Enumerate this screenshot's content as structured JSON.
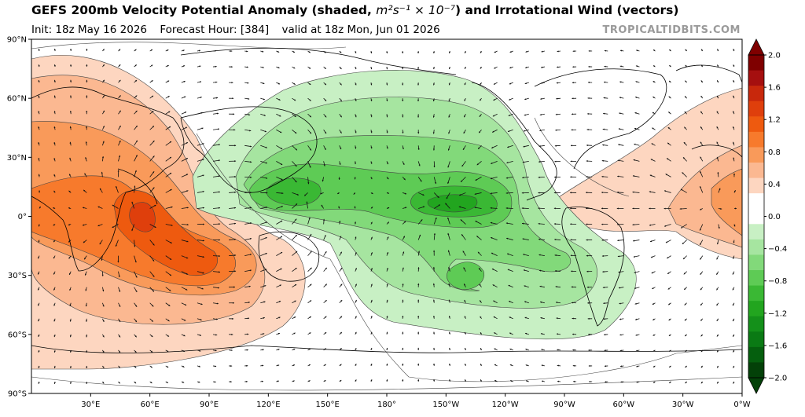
{
  "header": {
    "title_main": "GEFS 200mb Velocity Potential Anomaly (shaded,",
    "title_units": "m²s⁻¹ × 10⁻⁷",
    "title_tail": ") and Irrotational Wind (vectors)",
    "init": "Init: 18z May 16 2026",
    "forecast_hour": "Forecast Hour: [384]",
    "valid": "valid at 18z Mon, Jun 01 2026",
    "credit": "TROPICALTIDBITS.COM"
  },
  "map": {
    "lat_ticks": [
      {
        "lat": 90,
        "label": "90°N"
      },
      {
        "lat": 60,
        "label": "60°N"
      },
      {
        "lat": 30,
        "label": "30°N"
      },
      {
        "lat": 0,
        "label": "0°"
      },
      {
        "lat": -30,
        "label": "30°S"
      },
      {
        "lat": -60,
        "label": "60°S"
      },
      {
        "lat": -90,
        "label": "90°S"
      }
    ],
    "lon_ticks": [
      {
        "lon": 30,
        "label": "30°E"
      },
      {
        "lon": 60,
        "label": "60°E"
      },
      {
        "lon": 90,
        "label": "90°E"
      },
      {
        "lon": 120,
        "label": "120°E"
      },
      {
        "lon": 150,
        "label": "150°E"
      },
      {
        "lon": 180,
        "label": "180°"
      },
      {
        "lon": 210,
        "label": "150°W"
      },
      {
        "lon": 240,
        "label": "120°W"
      },
      {
        "lon": 270,
        "label": "90°W"
      },
      {
        "lon": 300,
        "label": "60°W"
      },
      {
        "lon": 330,
        "label": "30°W"
      },
      {
        "lon": 360,
        "label": "0°W"
      }
    ],
    "anomaly_centers": [
      {
        "lon": 55,
        "lat": 0,
        "value": 1.6,
        "kind": "positive"
      },
      {
        "lon": 340,
        "lat": 5,
        "value": 0.8,
        "kind": "positive"
      },
      {
        "lon": 135,
        "lat": 10,
        "value": -1.2,
        "kind": "negative"
      },
      {
        "lon": 210,
        "lat": 7,
        "value": -1.2,
        "kind": "negative"
      }
    ]
  },
  "colorbar": {
    "ticks": [
      "2.0",
      "1.6",
      "1.2",
      "0.8",
      "0.4",
      "0.0",
      "−0.4",
      "−0.8",
      "−1.2",
      "−1.6",
      "−2.0"
    ],
    "colors": [
      "#7f0000",
      "#a50f0f",
      "#c8280c",
      "#df3f0c",
      "#ee5a0f",
      "#f77a2c",
      "#f99a5a",
      "#fbb891",
      "#fdd6c0",
      "#ffffff",
      "#ffffff",
      "#c8f0c4",
      "#a6e5a0",
      "#82d97a",
      "#5ecb55",
      "#3ab834",
      "#22a51f",
      "#14901a",
      "#0a7a14",
      "#055f0e",
      "#034108"
    ]
  },
  "colors": {
    "positive": "#ee5a0f",
    "negative": "#22a51f",
    "land": "#000000"
  }
}
